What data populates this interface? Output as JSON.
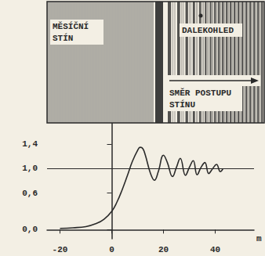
{
  "diagram": {
    "shadow_label": [
      "MĚSÍČNÍ",
      "STÍN"
    ],
    "telescope_label": "DALEKOHLED",
    "direction_label": [
      "SMĚR POSTUPU",
      "STÍNU"
    ]
  },
  "chart_data": {
    "type": "line",
    "color": "#2a2a2a",
    "xlabel": "m",
    "x": [
      -20,
      -15,
      -10,
      -6,
      -3,
      0,
      2,
      4,
      6,
      8,
      10,
      11,
      12,
      13,
      15,
      16.5,
      18,
      20,
      21.5,
      23.5,
      25,
      26.5,
      28.5,
      30,
      31.5,
      33,
      34.5,
      36,
      37.5,
      39,
      40.5,
      42,
      43
    ],
    "values": [
      0.02,
      0.03,
      0.05,
      0.1,
      0.17,
      0.3,
      0.45,
      0.65,
      0.88,
      1.12,
      1.3,
      1.35,
      1.33,
      1.22,
      0.92,
      0.81,
      0.95,
      1.22,
      1.1,
      0.87,
      1.02,
      1.17,
      0.89,
      1.02,
      1.13,
      0.9,
      1.02,
      1.1,
      0.92,
      1.0,
      1.07,
      0.95,
      1.0
    ],
    "xlim": [
      -25,
      55
    ],
    "xticks": [
      -20,
      0,
      20,
      40
    ],
    "ylim": [
      -0.15,
      1.75
    ],
    "yticks": [
      {
        "value": 0.0,
        "label": "0,0"
      },
      {
        "value": 0.6,
        "label": "0,6"
      },
      {
        "value": 1.0,
        "label": "1,0"
      },
      {
        "value": 1.4,
        "label": "1,4"
      }
    ],
    "reference_line": 1.0,
    "grid": false
  }
}
